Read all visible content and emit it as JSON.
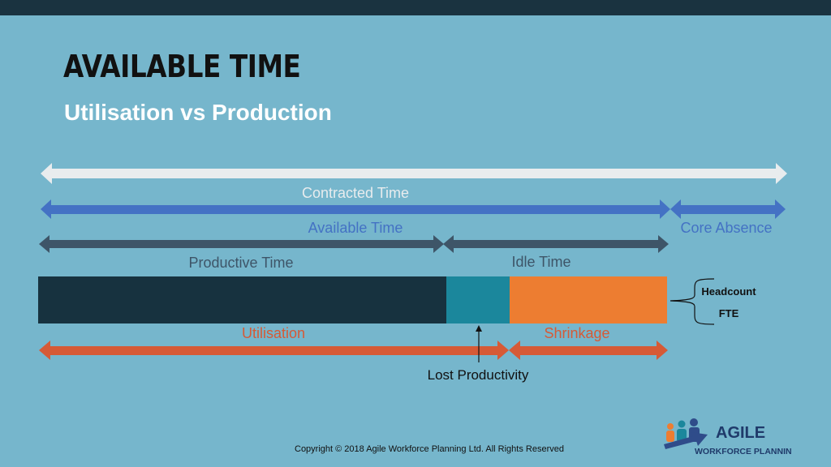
{
  "header": {
    "title": "AVAILABLE TIME",
    "subtitle": "Utilisation vs Production"
  },
  "diagram": {
    "labels": {
      "contracted_time": "Contracted Time",
      "available_time": "Available Time",
      "core_absence": "Core Absence",
      "productive_time": "Productive Time",
      "idle_time": "Idle Time",
      "utilisation": "Utilisation",
      "shrinkage": "Shrinkage",
      "lost_productivity": "Lost Productivity",
      "headcount": "Headcount",
      "fte": "FTE"
    },
    "colors": {
      "contracted": "#e8ecee",
      "available": "#4472c4",
      "productive": "#3e5568",
      "productive_block": "#17323f",
      "lost_productivity_block": "#1b879c",
      "shrinkage_block": "#ed7d31",
      "utilisation": "#d65a36"
    }
  },
  "footer": {
    "copyright": "Copyright © 2018 Agile Workforce Planning Ltd. All Rights Reserved",
    "logo_line1": "AGILE",
    "logo_line2": "WORKFORCE PLANNING"
  }
}
